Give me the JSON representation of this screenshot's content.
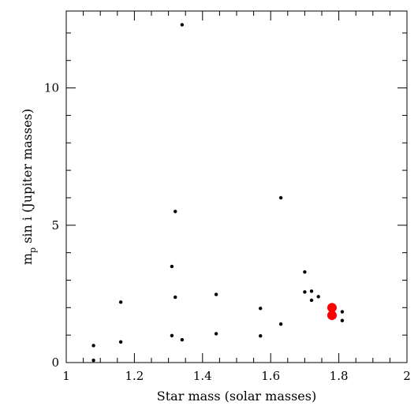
{
  "chart_data": {
    "type": "scatter",
    "xlabel": "Star mass (solar masses)",
    "ylabel_main": "m",
    "ylabel_sub": "p",
    "ylabel_rest": " sin i (Jupiter masses)",
    "xlim": [
      1.0,
      2.0
    ],
    "ylim": [
      0,
      12.8
    ],
    "x_major_ticks": [
      1,
      1.2,
      1.4,
      1.6,
      1.8,
      2
    ],
    "x_tick_labels": [
      "1",
      "1.2",
      "1.4",
      "1.6",
      "1.8",
      "2"
    ],
    "x_minor_step": 0.05,
    "y_major_ticks": [
      0,
      5,
      10
    ],
    "y_tick_labels": [
      "0",
      "5",
      "10"
    ],
    "y_minor_step": 1,
    "grid": false,
    "series": [
      {
        "color": "#000000",
        "points": [
          [
            1.08,
            0.62
          ],
          [
            1.08,
            0.08
          ],
          [
            1.16,
            2.2
          ],
          [
            1.16,
            0.75
          ],
          [
            1.31,
            3.5
          ],
          [
            1.31,
            0.98
          ],
          [
            1.32,
            5.5
          ],
          [
            1.32,
            2.38
          ],
          [
            1.34,
            12.3
          ],
          [
            1.34,
            0.83
          ],
          [
            1.44,
            2.48
          ],
          [
            1.44,
            1.05
          ],
          [
            1.57,
            1.97
          ],
          [
            1.57,
            0.97
          ],
          [
            1.63,
            6.0
          ],
          [
            1.63,
            1.4
          ],
          [
            1.7,
            3.3
          ],
          [
            1.7,
            2.57
          ],
          [
            1.72,
            2.6
          ],
          [
            1.72,
            2.27
          ],
          [
            1.74,
            2.4
          ],
          [
            1.81,
            1.85
          ],
          [
            1.81,
            1.53
          ]
        ]
      },
      {
        "color": "#ff0000",
        "points": [
          [
            1.78,
            2.0
          ],
          [
            1.78,
            1.72
          ]
        ]
      }
    ]
  }
}
